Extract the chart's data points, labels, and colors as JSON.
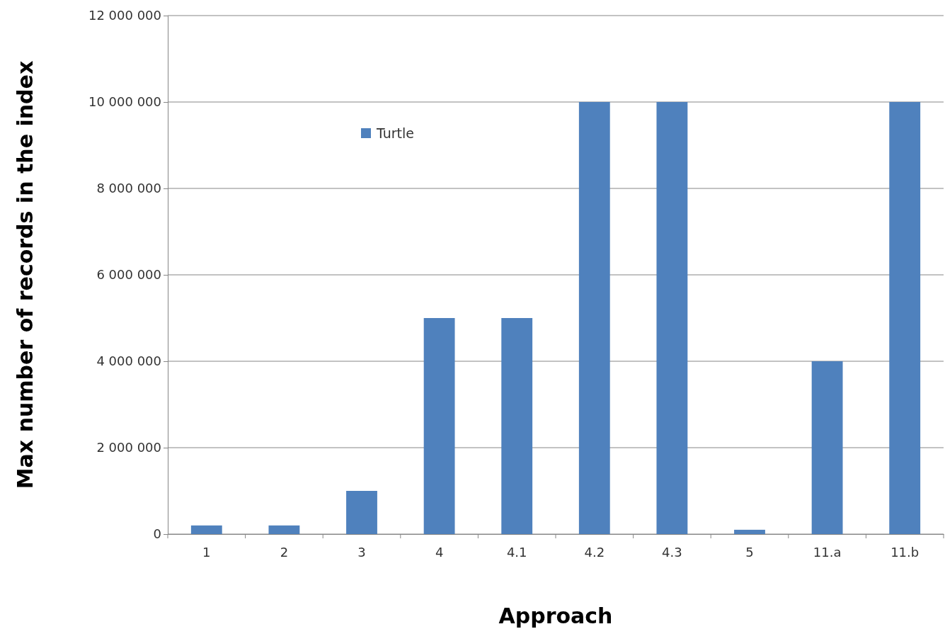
{
  "chart_data": {
    "type": "bar",
    "xlabel": "Approach",
    "ylabel": "Max number of records in the index",
    "categories": [
      "1",
      "2",
      "3",
      "4",
      "4.1",
      "4.2",
      "4.3",
      "5",
      "11.a",
      "11.b"
    ],
    "series": [
      {
        "name": "Turtle",
        "color": "#4f81bd",
        "values": [
          200000,
          200000,
          1000000,
          5000000,
          5000000,
          10000000,
          10000000,
          100000,
          4000000,
          10000000
        ]
      }
    ],
    "ylim": [
      0,
      12000000
    ],
    "yticks": [
      {
        "value": 0,
        "label": "0"
      },
      {
        "value": 2000000,
        "label": "2 000 000"
      },
      {
        "value": 4000000,
        "label": "4 000 000"
      },
      {
        "value": 6000000,
        "label": "6 000 000"
      },
      {
        "value": 8000000,
        "label": "8 000 000"
      },
      {
        "value": 10000000,
        "label": "10 000 000"
      },
      {
        "value": 12000000,
        "label": "12 000 000"
      }
    ],
    "grid": "y",
    "legend": "top left"
  }
}
